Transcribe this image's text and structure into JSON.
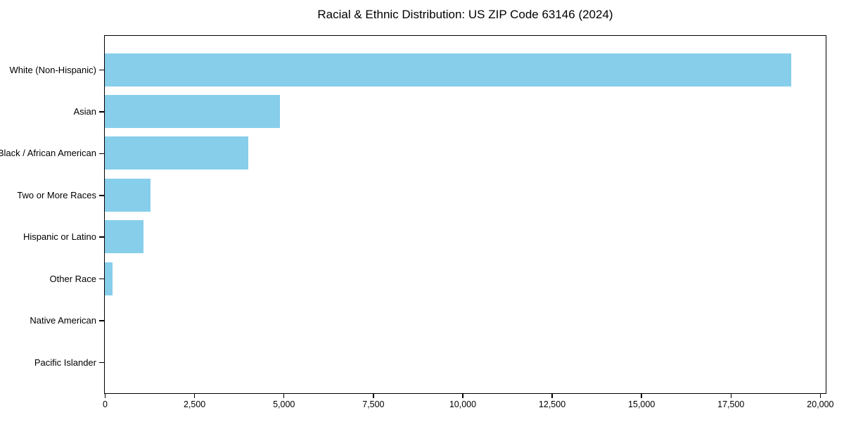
{
  "figure": {
    "background": "#ffffff",
    "text_color": "#000000",
    "spine_color": "#000000"
  },
  "chart_data": {
    "type": "bar",
    "orientation": "horizontal",
    "title": "Racial & Ethnic Distribution: US ZIP Code 63146 (2024)",
    "xlabel": "",
    "ylabel": "",
    "grid": false,
    "legend": null,
    "bar_color": "#87CEEB",
    "categories": [
      "White (Non-Hispanic)",
      "Asian",
      "Black / African American",
      "Two or More Races",
      "Hispanic or Latino",
      "Other Race",
      "Native American",
      "Pacific Islander"
    ],
    "values": [
      19190,
      4900,
      4020,
      1275,
      1080,
      220,
      0,
      0
    ],
    "xlim": [
      0,
      20140
    ],
    "x_ticks": [
      0,
      2500,
      5000,
      7500,
      10000,
      12500,
      15000,
      17500,
      20000
    ],
    "x_tick_labels": [
      "0",
      "2,500",
      "5,000",
      "7,500",
      "10,000",
      "12,500",
      "15,000",
      "17,500",
      "20,000"
    ]
  }
}
